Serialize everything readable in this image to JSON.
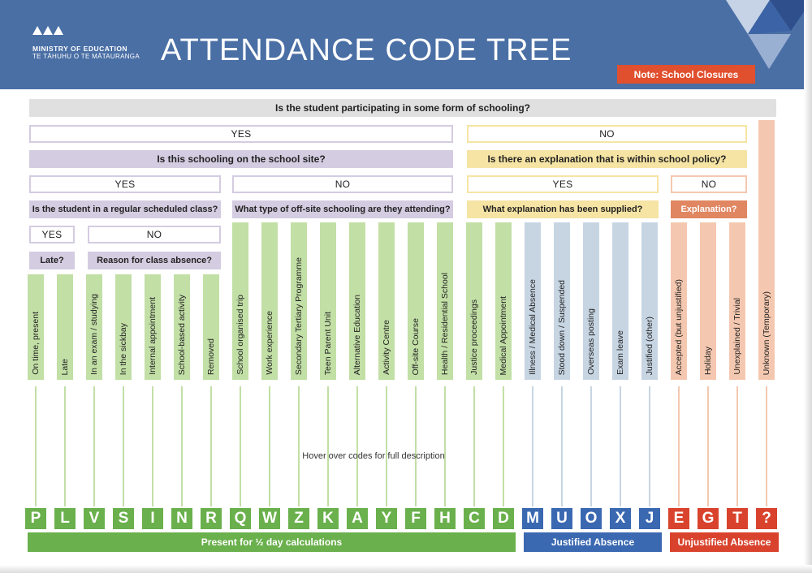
{
  "header": {
    "ministry_line1": "MINISTRY OF EDUCATION",
    "ministry_line2": "TE TĀHUHU O TE MĀTAURANGA",
    "title": "ATTENDANCE CODE TREE",
    "note_button": "Note: School Closures"
  },
  "colors": {
    "header_blue": "#4a6fa5",
    "question_gray": "#e0e0e0",
    "question_purple": "#d4cce1",
    "question_yellow": "#f6e4a4",
    "question_orange": "#e08661",
    "present_green": "#6ab04c",
    "present_light": "#c2dfa6",
    "justified_blue": "#3a68b1",
    "justified_light": "#c7d5e3",
    "unjustified_red": "#d9432d",
    "unjustified_light": "#f4c8b0"
  },
  "tree": {
    "q_schooling": "Is the student participating in some form of schooling?",
    "yes_schooling": "YES",
    "no_schooling": "NO",
    "q_site": "Is this schooling on the school site?",
    "q_policy": "Is there an explanation that is within school policy?",
    "yes_site": "YES",
    "no_site": "NO",
    "yes_policy": "YES",
    "no_policy": "NO",
    "q_regular": "Is the student in a regular scheduled class?",
    "q_offsite": "What type of off-site schooling are they attending?",
    "q_explanation": "What explanation has been supplied?",
    "q_unexplained": "Explanation?",
    "yes_regular": "YES",
    "no_regular": "NO",
    "q_late": "Late?",
    "q_absence": "Reason for class absence?",
    "unknown_marker": "*"
  },
  "reasons": [
    {
      "label": "On time, present",
      "code": "P",
      "group": "present"
    },
    {
      "label": "Late",
      "code": "L",
      "group": "present"
    },
    {
      "label": "In an exam / studying",
      "code": "V",
      "group": "present"
    },
    {
      "label": "In the sickbay",
      "code": "S",
      "group": "present"
    },
    {
      "label": "Internal appointment",
      "code": "I",
      "group": "present"
    },
    {
      "label": "School-based activity",
      "code": "N",
      "group": "present"
    },
    {
      "label": "Removed",
      "code": "R",
      "group": "present"
    },
    {
      "label": "School organised trip",
      "code": "Q",
      "group": "present"
    },
    {
      "label": "Work experience",
      "code": "W",
      "group": "present"
    },
    {
      "label": "Secondary Tertiary Programme",
      "code": "Z",
      "group": "present"
    },
    {
      "label": "Teen Parent Unit",
      "code": "K",
      "group": "present"
    },
    {
      "label": "Alternative Education",
      "code": "A",
      "group": "present"
    },
    {
      "label": "Activity Centre",
      "code": "Y",
      "group": "present"
    },
    {
      "label": "Off-site Course",
      "code": "F",
      "group": "present"
    },
    {
      "label": "Health / Residential School",
      "code": "H",
      "group": "present"
    },
    {
      "label": "Justice proceedings",
      "code": "C",
      "group": "present"
    },
    {
      "label": "Medical Appointment",
      "code": "D",
      "group": "present"
    },
    {
      "label": "Illness / Medical Absence",
      "code": "M",
      "group": "justified"
    },
    {
      "label": "Stood down / Suspended",
      "code": "U",
      "group": "justified"
    },
    {
      "label": "Overseas posting",
      "code": "O",
      "group": "justified"
    },
    {
      "label": "Exam leave",
      "code": "X",
      "group": "justified"
    },
    {
      "label": "Justified (other)",
      "code": "J",
      "group": "justified"
    },
    {
      "label": "Accepted (but unjustified)",
      "code": "E",
      "group": "unjustified"
    },
    {
      "label": "Holiday",
      "code": "G",
      "group": "unjustified"
    },
    {
      "label": "Unexplained / Trivial",
      "code": "T",
      "group": "unjustified"
    },
    {
      "label": "Unknown (Temporary)",
      "code": "?",
      "group": "unjustified"
    }
  ],
  "hint": "Hover over codes for full description",
  "footer": {
    "present": "Present for ½ day calculations",
    "justified": "Justified Absence",
    "unjustified": "Unjustified Absence"
  }
}
